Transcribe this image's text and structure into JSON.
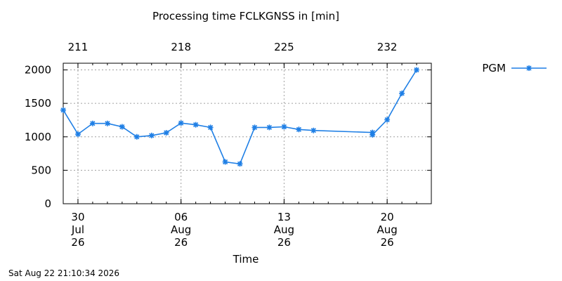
{
  "footer": {
    "timestamp": "Sat Aug 22 21:10:34 2026"
  },
  "chart_data": {
    "type": "line",
    "title": "Processing time FCLKGNSS in [min]",
    "xlabel": "Time",
    "ylabel": "",
    "x_range": [
      "2026-07-29",
      "2026-08-23"
    ],
    "ylim": [
      0,
      2100
    ],
    "y_ticks": [
      0,
      500,
      1000,
      1500,
      2000
    ],
    "x_ticks_bottom": [
      {
        "date": "2026-07-30",
        "lines": [
          "30",
          "Jul",
          "26"
        ]
      },
      {
        "date": "2026-08-06",
        "lines": [
          "06",
          "Aug",
          "26"
        ]
      },
      {
        "date": "2026-08-13",
        "lines": [
          "13",
          "Aug",
          "26"
        ]
      },
      {
        "date": "2026-08-20",
        "lines": [
          "20",
          "Aug",
          "26"
        ]
      }
    ],
    "x_ticks_top": [
      {
        "date": "2026-07-30",
        "label": "211"
      },
      {
        "date": "2026-08-06",
        "label": "218"
      },
      {
        "date": "2026-08-13",
        "label": "225"
      },
      {
        "date": "2026-08-20",
        "label": "232"
      }
    ],
    "grid": true,
    "legend_position": "top-right",
    "colors": {
      "series": "#1f7fe5",
      "grid": "#a0a0a0",
      "axis": "#000000"
    },
    "series": [
      {
        "name": "PGM",
        "points": [
          {
            "x": "2026-07-29",
            "y": 1400
          },
          {
            "x": "2026-07-30",
            "y": 1040
          },
          {
            "x": "2026-07-31",
            "y": 1200
          },
          {
            "x": "2026-08-01",
            "y": 1200
          },
          {
            "x": "2026-08-02",
            "y": 1150
          },
          {
            "x": "2026-08-03",
            "y": 1000
          },
          {
            "x": "2026-08-04",
            "y": 1020
          },
          {
            "x": "2026-08-05",
            "y": 1060
          },
          {
            "x": "2026-08-06",
            "y": 1205
          },
          {
            "x": "2026-08-07",
            "y": 1180
          },
          {
            "x": "2026-08-08",
            "y": 1140
          },
          {
            "x": "2026-08-09",
            "y": 625
          },
          {
            "x": "2026-08-10",
            "y": 595
          },
          {
            "x": "2026-08-11",
            "y": 1140
          },
          {
            "x": "2026-08-12",
            "y": 1140
          },
          {
            "x": "2026-08-13",
            "y": 1150
          },
          {
            "x": "2026-08-14",
            "y": 1110
          },
          {
            "x": "2026-08-15",
            "y": 1095
          },
          {
            "x": "2026-08-19",
            "y": 1065
          },
          {
            "x": "2026-08-19",
            "y": 1030
          },
          {
            "x": "2026-08-20",
            "y": 1255
          },
          {
            "x": "2026-08-21",
            "y": 1650
          },
          {
            "x": "2026-08-22",
            "y": 2000
          }
        ]
      }
    ]
  }
}
